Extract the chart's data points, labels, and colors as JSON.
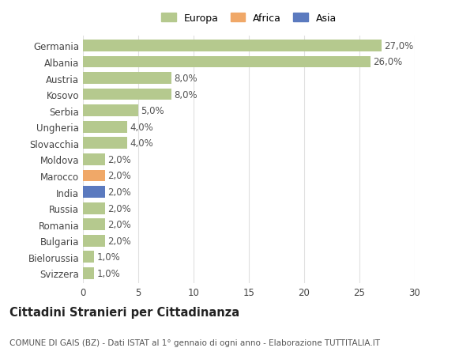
{
  "categories": [
    "Germania",
    "Albania",
    "Austria",
    "Kosovo",
    "Serbia",
    "Ungheria",
    "Slovacchia",
    "Moldova",
    "Marocco",
    "India",
    "Russia",
    "Romania",
    "Bulgaria",
    "Bielorussia",
    "Svizzera"
  ],
  "values": [
    27.0,
    26.0,
    8.0,
    8.0,
    5.0,
    4.0,
    4.0,
    2.0,
    2.0,
    2.0,
    2.0,
    2.0,
    2.0,
    1.0,
    1.0
  ],
  "labels": [
    "27,0%",
    "26,0%",
    "8,0%",
    "8,0%",
    "5,0%",
    "4,0%",
    "4,0%",
    "2,0%",
    "2,0%",
    "2,0%",
    "2,0%",
    "2,0%",
    "2,0%",
    "1,0%",
    "1,0%"
  ],
  "continent": [
    "Europa",
    "Europa",
    "Europa",
    "Europa",
    "Europa",
    "Europa",
    "Europa",
    "Europa",
    "Africa",
    "Asia",
    "Europa",
    "Europa",
    "Europa",
    "Europa",
    "Europa"
  ],
  "colors": {
    "Europa": "#b5c98e",
    "Africa": "#f0a868",
    "Asia": "#5b7abf"
  },
  "legend_labels": [
    "Europa",
    "Africa",
    "Asia"
  ],
  "legend_colors": [
    "#b5c98e",
    "#f0a868",
    "#5b7abf"
  ],
  "xlim": [
    0,
    30
  ],
  "xticks": [
    0,
    5,
    10,
    15,
    20,
    25,
    30
  ],
  "title": "Cittadini Stranieri per Cittadinanza",
  "subtitle": "COMUNE DI GAIS (BZ) - Dati ISTAT al 1° gennaio di ogni anno - Elaborazione TUTTITALIA.IT",
  "background_color": "#ffffff",
  "bar_height": 0.72,
  "grid_color": "#e0e0e0",
  "label_fontsize": 8.5,
  "tick_fontsize": 8.5,
  "title_fontsize": 10.5,
  "subtitle_fontsize": 7.5
}
